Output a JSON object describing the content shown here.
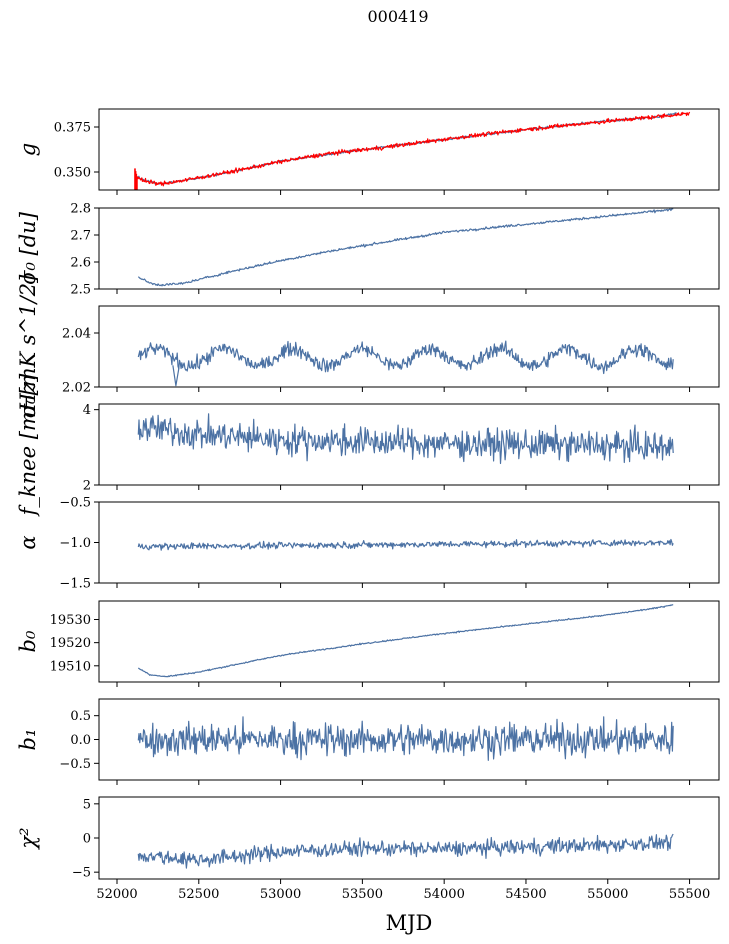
{
  "chart_data": {
    "type": "line",
    "suptitle": "000419",
    "xlabel": "MJD",
    "xlim": [
      51890,
      55680
    ],
    "xticks": [
      52000,
      52500,
      53000,
      53500,
      54000,
      54500,
      55000,
      55500
    ],
    "xtick_labels": [
      "52000",
      "52500",
      "53000",
      "53500",
      "54000",
      "54500",
      "55000",
      "55500"
    ],
    "line_color": "#4c72a4",
    "fit_color": "#ff0000",
    "panels": [
      {
        "id": "g",
        "ylabel": "g",
        "ylim": [
          0.34,
          0.385
        ],
        "yticks": [
          0.35,
          0.375
        ],
        "ytick_labels": [
          "0.350",
          "0.375"
        ],
        "trend": [
          [
            52110,
            0.348
          ],
          [
            52180,
            0.345
          ],
          [
            52260,
            0.3435
          ],
          [
            52400,
            0.345
          ],
          [
            52700,
            0.35
          ],
          [
            53000,
            0.356
          ],
          [
            53300,
            0.36
          ],
          [
            53600,
            0.3635
          ],
          [
            54000,
            0.368
          ],
          [
            54500,
            0.3735
          ],
          [
            55000,
            0.3785
          ],
          [
            55300,
            0.3805
          ],
          [
            55420,
            0.3825
          ]
        ],
        "noise": 0.0004,
        "overlay": {
          "trend": [
            [
              52110,
              0.3475
            ],
            [
              52180,
              0.3448
            ],
            [
              52260,
              0.3433
            ],
            [
              52400,
              0.3452
            ],
            [
              52700,
              0.3502
            ],
            [
              53000,
              0.3558
            ],
            [
              53300,
              0.3603
            ],
            [
              53600,
              0.3633
            ],
            [
              54000,
              0.3682
            ],
            [
              54500,
              0.3737
            ],
            [
              55000,
              0.3782
            ],
            [
              55300,
              0.3808
            ],
            [
              55500,
              0.3825
            ]
          ],
          "noise": 0.0008,
          "spike_start": [
            52110,
            0.34,
            0.352
          ]
        }
      },
      {
        "id": "sigma0",
        "ylabel": "σ₀ [du]",
        "ylim": [
          2.5,
          2.8
        ],
        "yticks": [
          2.5,
          2.6,
          2.7,
          2.8
        ],
        "ytick_labels": [
          "2.5",
          "2.6",
          "2.7",
          "2.8"
        ],
        "trend": [
          [
            52130,
            2.545
          ],
          [
            52200,
            2.522
          ],
          [
            52260,
            2.515
          ],
          [
            52400,
            2.52
          ],
          [
            52700,
            2.565
          ],
          [
            53000,
            2.605
          ],
          [
            53300,
            2.64
          ],
          [
            53600,
            2.67
          ],
          [
            54000,
            2.71
          ],
          [
            54500,
            2.74
          ],
          [
            55000,
            2.77
          ],
          [
            55400,
            2.795
          ]
        ],
        "noise": 0.003
      },
      {
        "id": "sigma0_mk",
        "ylabel": "σ₀[mK s^1/2]",
        "ylim": [
          2.02,
          2.05
        ],
        "yticks": [
          2.02,
          2.04
        ],
        "ytick_labels": [
          "2.02",
          "2.04"
        ],
        "trend": [
          [
            52130,
            2.031
          ],
          [
            55400,
            2.031
          ]
        ],
        "noise": 0.0018,
        "wave": [
          0.0032,
          420
        ],
        "dip": [
          52360,
          2.0205
        ]
      },
      {
        "id": "fknee",
        "ylabel": "f_knee [mHz]",
        "ylim": [
          2,
          4.15
        ],
        "yticks": [
          2,
          4
        ],
        "ytick_labels": [
          "2",
          "4"
        ],
        "trend": [
          [
            52130,
            3.55
          ],
          [
            52500,
            3.35
          ],
          [
            53000,
            3.2
          ],
          [
            54000,
            3.1
          ],
          [
            55000,
            3.05
          ],
          [
            55400,
            3.0
          ]
        ],
        "noise": 0.28
      },
      {
        "id": "alpha",
        "ylabel": "α",
        "ylim": [
          -1.5,
          -0.5
        ],
        "yticks": [
          -1.5,
          -1.0,
          -0.5
        ],
        "ytick_labels": [
          "−1.5",
          "−1.0",
          "−0.5"
        ],
        "trend": [
          [
            52130,
            -1.05
          ],
          [
            55400,
            -1.0
          ]
        ],
        "noise": 0.028
      },
      {
        "id": "b0",
        "ylabel": "b₀",
        "ylim": [
          19503,
          19538
        ],
        "yticks": [
          19510,
          19520,
          19530
        ],
        "ytick_labels": [
          "19510",
          "19520",
          "19530"
        ],
        "trend": [
          [
            52130,
            19509
          ],
          [
            52200,
            19506.2
          ],
          [
            52300,
            19505.3
          ],
          [
            52500,
            19507.3
          ],
          [
            53000,
            19514.5
          ],
          [
            53500,
            19519.5
          ],
          [
            54000,
            19524
          ],
          [
            54500,
            19528
          ],
          [
            55000,
            19532
          ],
          [
            55300,
            19535
          ],
          [
            55400,
            19536.5
          ]
        ],
        "noise": 0.2
      },
      {
        "id": "b1",
        "ylabel": "b₁",
        "ylim": [
          -0.85,
          0.85
        ],
        "yticks": [
          -0.5,
          0.0,
          0.5
        ],
        "ytick_labels": [
          "−0.5",
          "0.0",
          "0.5"
        ],
        "trend": [
          [
            52130,
            0.0
          ],
          [
            55400,
            0.0
          ]
        ],
        "noise": 0.24
      },
      {
        "id": "chi2",
        "ylabel": "χ²",
        "ylim": [
          -6,
          6
        ],
        "yticks": [
          -5,
          0,
          5
        ],
        "ytick_labels": [
          "−5",
          "0",
          "5"
        ],
        "trend": [
          [
            52130,
            -2.5
          ],
          [
            52500,
            -3.2
          ],
          [
            53000,
            -2.0
          ],
          [
            53500,
            -1.5
          ],
          [
            54000,
            -1.6
          ],
          [
            54500,
            -1.3
          ],
          [
            55000,
            -1.0
          ],
          [
            55400,
            -0.6
          ]
        ],
        "noise": 0.8
      }
    ]
  }
}
